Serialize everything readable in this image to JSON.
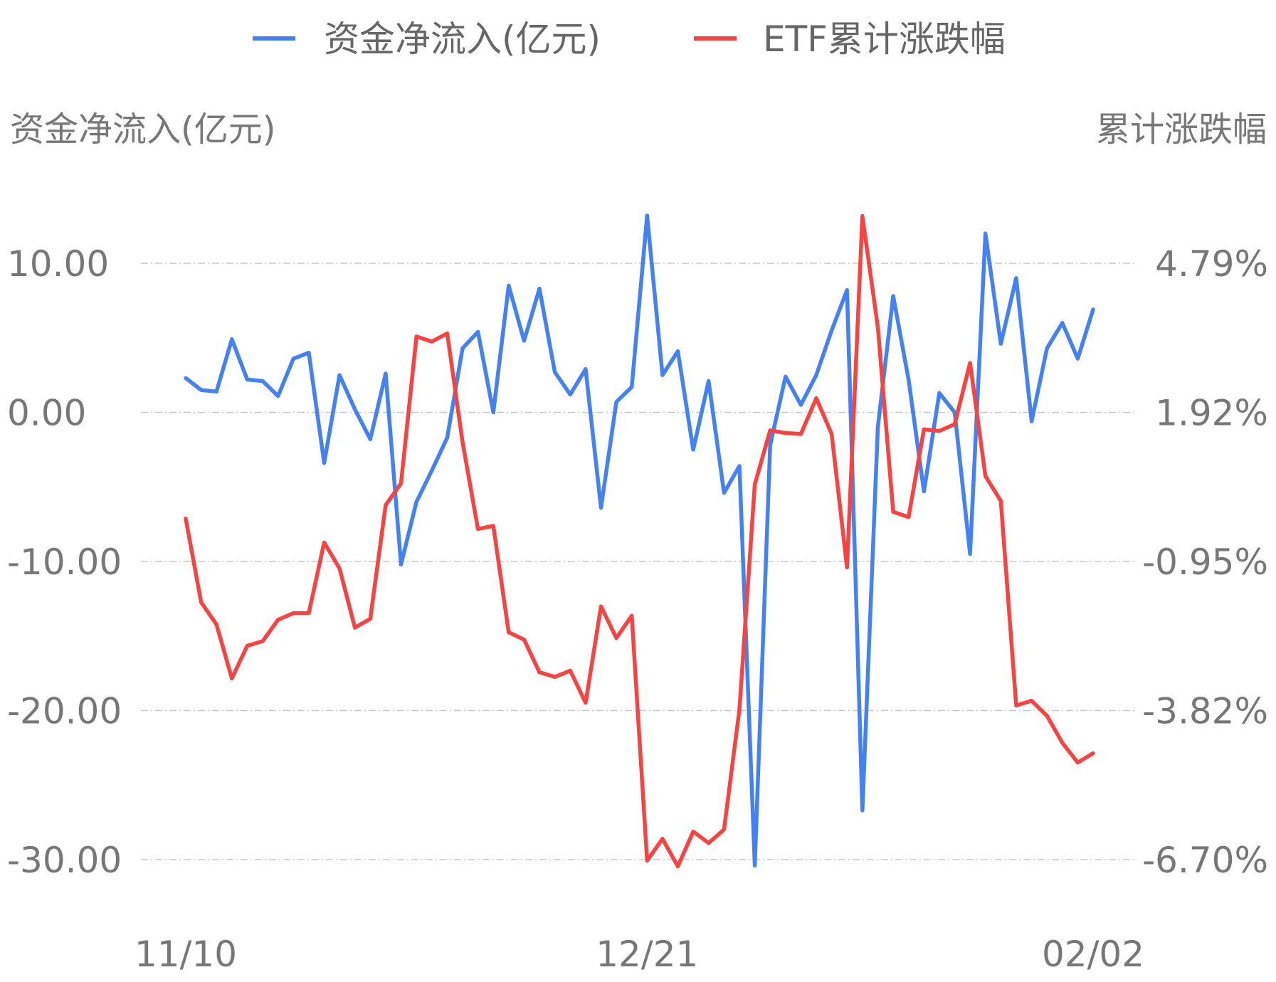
{
  "chart_data": {
    "type": "line",
    "legend": {
      "position": "top-center",
      "entries": [
        "资金净流入(亿元)",
        "ETF累计涨跌幅"
      ]
    },
    "y_left": {
      "title": "资金净流入(亿元)",
      "min": -30,
      "max": 10,
      "ticks": [
        "10.00",
        "0.00",
        "-10.00",
        "-20.00",
        "-30.00"
      ]
    },
    "y_right": {
      "title": "累计涨跌幅",
      "min": -6.7,
      "max": 4.79,
      "ticks": [
        "4.79%",
        "1.92%",
        "-0.95%",
        "-3.82%",
        "-6.70%"
      ]
    },
    "x_tick_labels": [
      "11/10",
      "12/21",
      "02/02"
    ],
    "grid": true,
    "series": [
      {
        "name": "资金净流入(亿元)",
        "color": "#4381f6",
        "axis": "left",
        "values": [
          2.3,
          1.5,
          1.4,
          4.9,
          2.2,
          2.1,
          1.1,
          3.6,
          4.0,
          -3.4,
          2.5,
          0.2,
          -1.8,
          2.6,
          -10.2,
          -6.0,
          -3.9,
          -1.7,
          4.3,
          5.4,
          0.0,
          8.5,
          4.8,
          8.3,
          2.7,
          1.2,
          2.9,
          -6.4,
          0.7,
          1.7,
          13.2,
          2.5,
          4.1,
          -2.5,
          2.1,
          -5.4,
          -3.6,
          -30.4,
          -2.2,
          2.4,
          0.5,
          2.5,
          5.5,
          8.2,
          -26.7,
          -1.0,
          7.8,
          2.2,
          -5.3,
          1.3,
          0.0,
          -9.5,
          12.0,
          4.6,
          9.0,
          -0.6,
          4.3,
          6.0,
          3.6,
          6.9
        ]
      },
      {
        "name": "ETF累计涨跌幅",
        "color": "#fa4340",
        "axis": "right",
        "values": [
          -0.13,
          -1.74,
          -2.17,
          -3.21,
          -2.58,
          -2.49,
          -2.08,
          -1.95,
          -1.95,
          -0.59,
          -1.09,
          -2.23,
          -2.06,
          0.13,
          0.55,
          3.38,
          3.28,
          3.44,
          1.34,
          -0.33,
          -0.27,
          -2.32,
          -2.46,
          -3.09,
          -3.18,
          -3.06,
          -3.68,
          -1.82,
          -2.43,
          -2.0,
          -6.72,
          -6.3,
          -6.83,
          -6.16,
          -6.38,
          -6.12,
          -3.81,
          0.53,
          1.57,
          1.52,
          1.5,
          2.19,
          1.5,
          -1.07,
          5.7,
          3.56,
          0.0,
          -0.1,
          1.59,
          1.56,
          1.69,
          2.87,
          0.69,
          0.21,
          -3.73,
          -3.64,
          -3.93,
          -4.45,
          -4.83,
          -4.65
        ]
      }
    ]
  }
}
